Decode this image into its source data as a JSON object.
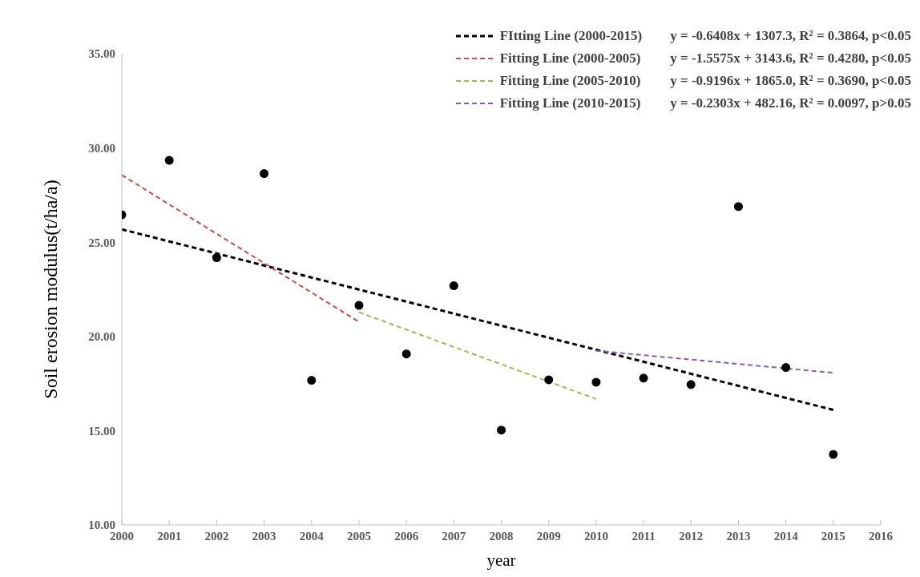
{
  "chart_data": {
    "type": "scatter",
    "xlabel": "year",
    "ylabel": "Soil erosion modulus(t/ha/a)",
    "x": [
      2000,
      2001,
      2002,
      2003,
      2004,
      2005,
      2006,
      2007,
      2008,
      2009,
      2010,
      2011,
      2012,
      2013,
      2014,
      2015
    ],
    "series": [
      {
        "color": "#000000",
        "marker": "circle",
        "values": [
          26.45,
          29.34,
          24.18,
          28.64,
          17.67,
          21.65,
          19.07,
          22.69,
          15.03,
          17.7,
          17.57,
          17.79,
          17.45,
          26.89,
          18.35,
          13.74
        ]
      },
      {
        "type": "line",
        "name": "FItting Line (2000-2015)",
        "color": "#000000",
        "line_style": "dashed",
        "x": [
          2000,
          2015
        ],
        "values": [
          25.68,
          16.1
        ]
      },
      {
        "type": "line",
        "name": "Fitting Line (2000-2005)",
        "color": "#c0504d",
        "line_style": "dashed",
        "x": [
          2000,
          2005
        ],
        "values": [
          28.56,
          20.77
        ]
      },
      {
        "type": "line",
        "name": "Fitting Line (2005-2010)",
        "color": "#9bbb59",
        "line_style": "dashed",
        "x": [
          2005,
          2010
        ],
        "values": [
          21.28,
          16.68
        ]
      },
      {
        "type": "line",
        "name": "Fitting Line (2010-2015)",
        "color": "#8064a2",
        "line_style": "dashed",
        "x": [
          2010,
          2015
        ],
        "values": [
          19.24,
          18.07
        ]
      }
    ],
    "annotations": [
      "y = -0.6408x + 1307.3, R² = 0.3864, p<0.05",
      "y = -1.5575x + 3143.6, R² = 0.4280, p<0.05",
      "y = -0.9196x + 1865.0, R² = 0.3690, p<0.05",
      "y = -0.2303x + 482.16, R² = 0.0097, p>0.05"
    ],
    "xlim": [
      2000,
      2016
    ],
    "xticks": [
      2000,
      2001,
      2002,
      2003,
      2004,
      2005,
      2006,
      2007,
      2008,
      2009,
      2010,
      2011,
      2012,
      2013,
      2014,
      2015,
      2016
    ],
    "ylim": [
      10,
      35
    ],
    "yticks": [
      {
        "value": 10,
        "label": "10.00"
      },
      {
        "value": 15,
        "label": "15.00"
      },
      {
        "value": 20,
        "label": "20.00"
      },
      {
        "value": 25,
        "label": "25.00"
      },
      {
        "value": 30,
        "label": "30.00"
      },
      {
        "value": 35,
        "label": "35.00"
      }
    ],
    "grid": false,
    "legend": "top right"
  }
}
